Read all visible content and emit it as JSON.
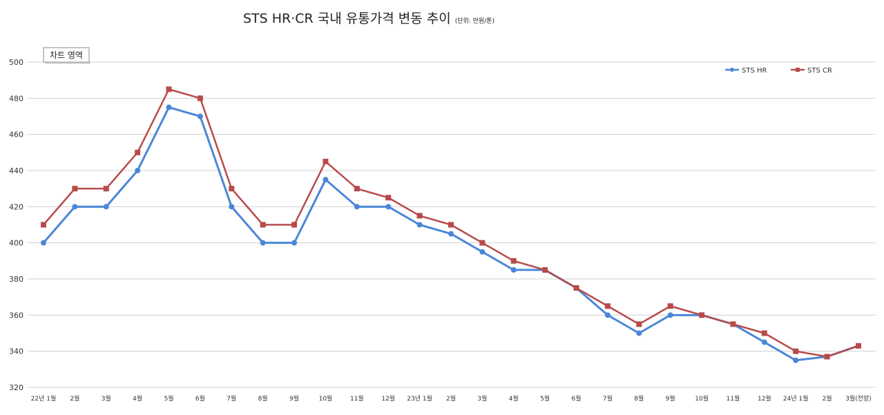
{
  "title": "STS HR·CR  국내 유통가격 변동 추이",
  "unit_note": "(단위: 만원/톤)",
  "chart_area_label": "차트 영역",
  "colors": {
    "hr": "#4a86d8",
    "cr": "#b84a4a",
    "grid": "#d0d0d0"
  },
  "chart_data": {
    "type": "line",
    "title": "STS HR·CR  국내 유통가격 변동 추이",
    "xlabel": "",
    "ylabel": "",
    "ylim": [
      320,
      500
    ],
    "yticks": [
      320,
      340,
      360,
      380,
      400,
      420,
      440,
      460,
      480,
      500
    ],
    "grid": true,
    "legend": "top-right",
    "categories": [
      "22년 1월",
      "2월",
      "3월",
      "4월",
      "5월",
      "6월",
      "7월",
      "8월",
      "9월",
      "10월",
      "11월",
      "12월",
      "23년 1월",
      "2월",
      "3월",
      "4월",
      "5월",
      "6월",
      "7월",
      "8월",
      "9월",
      "10월",
      "11월",
      "12월",
      "24년 1월",
      "2월",
      "3월(전망)"
    ],
    "series": [
      {
        "name": "STS HR",
        "marker": "circle",
        "values": [
          400,
          420,
          420,
          440,
          475,
          470,
          420,
          400,
          400,
          435,
          420,
          420,
          410,
          405,
          395,
          385,
          385,
          375,
          360,
          350,
          360,
          360,
          355,
          345,
          335,
          337,
          343
        ]
      },
      {
        "name": "STS CR",
        "marker": "square",
        "values": [
          410,
          430,
          430,
          450,
          485,
          480,
          430,
          410,
          410,
          445,
          430,
          425,
          415,
          410,
          400,
          390,
          385,
          375,
          365,
          355,
          365,
          360,
          355,
          350,
          340,
          337,
          343
        ]
      }
    ]
  }
}
